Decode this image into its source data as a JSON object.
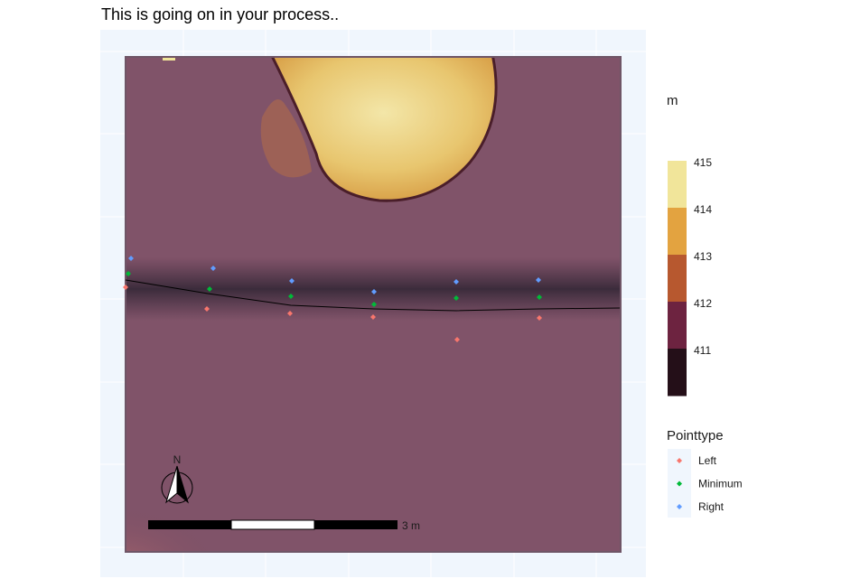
{
  "title": "This is going on in your process..",
  "chart_data": {
    "type": "scatter",
    "title": "This is going on in your process..",
    "background": "raster elevation map (terrain colors)",
    "grid": true,
    "scale_bar_label": "3 m",
    "north_arrow_label": "N",
    "elevation_legend": {
      "title": "m",
      "ticks": [
        415,
        414,
        413,
        412,
        411
      ],
      "colors": [
        "#f1e59a",
        "#e3a340",
        "#b7582f",
        "#6d2340",
        "#240f18"
      ]
    },
    "point_legend": {
      "title": "Pointtype",
      "entries": [
        {
          "label": "Left",
          "color": "#f8766d"
        },
        {
          "label": "Minimum",
          "color": "#00ba38"
        },
        {
          "label": "Right",
          "color": "#619cff"
        }
      ]
    },
    "series": [
      {
        "name": "Left",
        "color": "#f8766d",
        "points": [
          [
            139,
            318
          ],
          [
            229,
            342
          ],
          [
            321,
            347
          ],
          [
            413,
            351
          ],
          [
            506,
            376
          ],
          [
            597,
            352
          ]
        ]
      },
      {
        "name": "Minimum",
        "color": "#00ba38",
        "points": [
          [
            142,
            303
          ],
          [
            232,
            320
          ],
          [
            322,
            328
          ],
          [
            414,
            337
          ],
          [
            505,
            330
          ],
          [
            597,
            329
          ]
        ]
      },
      {
        "name": "Right",
        "color": "#619cff",
        "points": [
          [
            145,
            286
          ],
          [
            236,
            297
          ],
          [
            323,
            311
          ],
          [
            414,
            323
          ],
          [
            505,
            312
          ],
          [
            596,
            310
          ]
        ]
      }
    ],
    "centerline": [
      [
        139,
        310
      ],
      [
        230,
        325
      ],
      [
        322,
        338
      ],
      [
        414,
        342
      ],
      [
        505,
        344
      ],
      [
        597,
        342
      ],
      [
        686,
        341
      ]
    ]
  }
}
